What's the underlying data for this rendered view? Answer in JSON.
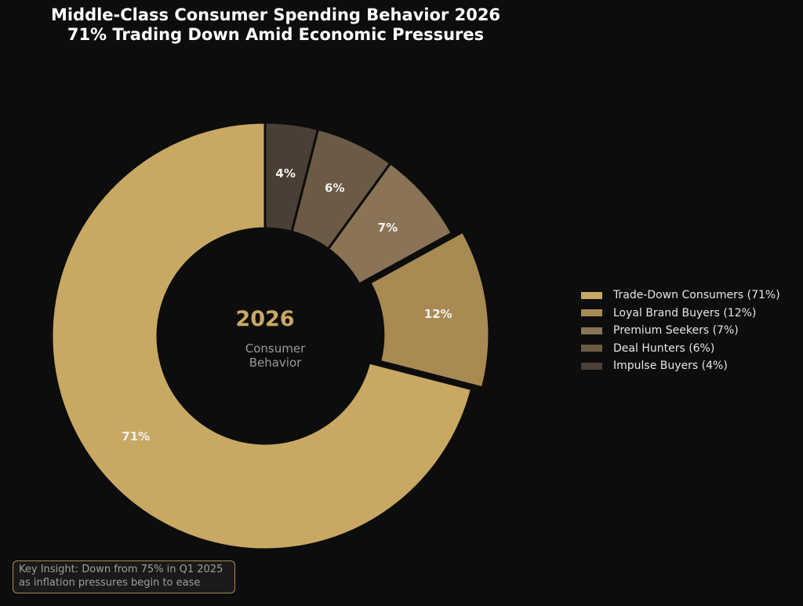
{
  "chart_data": {
    "type": "pie",
    "title": [
      "Middle-Class Consumer Spending Behavior 2026",
      "71% Trading Down Amid Economic Pressures"
    ],
    "center": {
      "label": "2026",
      "sublabel": [
        "Consumer",
        "Behavior"
      ]
    },
    "categories": [
      "Trade-Down Consumers",
      "Loyal Brand Buyers",
      "Premium Seekers",
      "Deal Hunters",
      "Impulse Buyers"
    ],
    "values": [
      71,
      12,
      7,
      6,
      4
    ],
    "value_labels": [
      "71%",
      "12%",
      "7%",
      "6%",
      "4%"
    ],
    "legend_labels": [
      "Trade-Down Consumers (71%)",
      "Loyal Brand Buyers (12%)",
      "Premium Seekers (7%)",
      "Deal Hunters (6%)",
      "Impulse Buyers (4%)"
    ],
    "colors": [
      "#c9a864",
      "#a88a52",
      "#8b7355",
      "#6b5a45",
      "#4a3f35"
    ],
    "exploded": "Loyal Brand Buyers",
    "chart_style": "donut",
    "start": "top, clockwise",
    "legend_position": "right",
    "annotation": [
      "Key Insight: Down from 75% in Q1 2025",
      "as inflation pressures begin to ease"
    ]
  }
}
